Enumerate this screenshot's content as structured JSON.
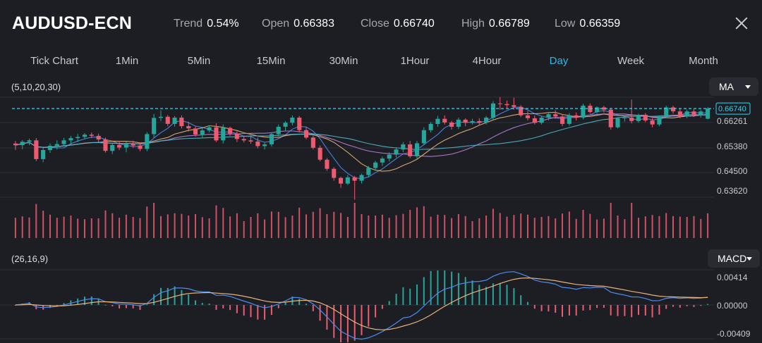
{
  "header": {
    "symbol": "AUDUSD-ECN",
    "stats": [
      {
        "label": "Trend",
        "value": "0.54%"
      },
      {
        "label": "Open",
        "value": "0.66383"
      },
      {
        "label": "Close",
        "value": "0.66740"
      },
      {
        "label": "High",
        "value": "0.66789"
      },
      {
        "label": "Low",
        "value": "0.66359"
      }
    ]
  },
  "tabs": [
    {
      "label": "Tick Chart",
      "active": false
    },
    {
      "label": "1Min",
      "active": false
    },
    {
      "label": "5Min",
      "active": false
    },
    {
      "label": "15Min",
      "active": false
    },
    {
      "label": "30Min",
      "active": false
    },
    {
      "label": "1Hour",
      "active": false
    },
    {
      "label": "4Hour",
      "active": false
    },
    {
      "label": "Day",
      "active": true
    },
    {
      "label": "Week",
      "active": false
    },
    {
      "label": "Month",
      "active": false
    }
  ],
  "main_panel": {
    "params": "(5,10,20,30)",
    "indicator": "MA",
    "y_ticks": [
      "0.66261",
      "0.65380",
      "0.64500",
      "0.63620"
    ],
    "current_price_label": "0.66740",
    "current_price": 0.6674
  },
  "macd_panel": {
    "params": "(26,16,9)",
    "indicator": "MACD",
    "y_ticks": [
      "0.00414",
      "0.00000",
      "-0.00409"
    ]
  },
  "colors": {
    "up": "#26a69a",
    "down": "#ef5a6f",
    "price_line": "#2fd4f2",
    "accent": "#2fb7e3",
    "ma5": "#4b8cf0",
    "ma10": "#e8b27a",
    "ma20": "#b57ed6",
    "ma30": "#4fb8c8"
  },
  "chart_data": {
    "type": "candlestick",
    "price_axis": {
      "min": 0.6362,
      "max": 0.6714
    },
    "candles": [
      [
        0.6551,
        0.656,
        0.6528,
        0.6545
      ],
      [
        0.6545,
        0.6563,
        0.6531,
        0.6557
      ],
      [
        0.6557,
        0.6568,
        0.6545,
        0.6562
      ],
      [
        0.6562,
        0.657,
        0.6489,
        0.6496
      ],
      [
        0.6496,
        0.6537,
        0.6485,
        0.6528
      ],
      [
        0.6528,
        0.6551,
        0.6518,
        0.6543
      ],
      [
        0.6543,
        0.6562,
        0.653,
        0.6549
      ],
      [
        0.6549,
        0.6571,
        0.654,
        0.6562
      ],
      [
        0.6562,
        0.6578,
        0.6548,
        0.657
      ],
      [
        0.657,
        0.6585,
        0.6556,
        0.6574
      ],
      [
        0.6574,
        0.6588,
        0.6566,
        0.6582
      ],
      [
        0.6582,
        0.659,
        0.657,
        0.6578
      ],
      [
        0.6578,
        0.6586,
        0.6556,
        0.6565
      ],
      [
        0.6565,
        0.6572,
        0.6519,
        0.6525
      ],
      [
        0.6525,
        0.6552,
        0.6514,
        0.6546
      ],
      [
        0.6546,
        0.656,
        0.6528,
        0.6537
      ],
      [
        0.6537,
        0.6558,
        0.652,
        0.6549
      ],
      [
        0.6549,
        0.6561,
        0.6536,
        0.6544
      ],
      [
        0.6544,
        0.6555,
        0.6524,
        0.6532
      ],
      [
        0.6532,
        0.6591,
        0.6524,
        0.6584
      ],
      [
        0.6584,
        0.6655,
        0.657,
        0.6641
      ],
      [
        0.6641,
        0.6668,
        0.663,
        0.6645
      ],
      [
        0.6645,
        0.6651,
        0.6612,
        0.662
      ],
      [
        0.662,
        0.6648,
        0.661,
        0.6642
      ],
      [
        0.6642,
        0.665,
        0.6604,
        0.6612
      ],
      [
        0.6612,
        0.6628,
        0.6593,
        0.6604
      ],
      [
        0.6604,
        0.661,
        0.6575,
        0.6583
      ],
      [
        0.6583,
        0.6604,
        0.657,
        0.6597
      ],
      [
        0.6597,
        0.6615,
        0.659,
        0.6608
      ],
      [
        0.6608,
        0.6622,
        0.6556,
        0.6562
      ],
      [
        0.6562,
        0.6618,
        0.6551,
        0.6606
      ],
      [
        0.6606,
        0.661,
        0.6578,
        0.6586
      ],
      [
        0.6586,
        0.6594,
        0.6556,
        0.6567
      ],
      [
        0.6567,
        0.6575,
        0.6555,
        0.6562
      ],
      [
        0.6562,
        0.658,
        0.655,
        0.6558
      ],
      [
        0.6558,
        0.6572,
        0.6534,
        0.6542
      ],
      [
        0.6542,
        0.6556,
        0.653,
        0.6548
      ],
      [
        0.6548,
        0.6589,
        0.654,
        0.6584
      ],
      [
        0.6584,
        0.6618,
        0.6575,
        0.661
      ],
      [
        0.661,
        0.663,
        0.6596,
        0.6624
      ],
      [
        0.6624,
        0.665,
        0.6615,
        0.6642
      ],
      [
        0.6642,
        0.6648,
        0.659,
        0.6598
      ],
      [
        0.6598,
        0.661,
        0.6566,
        0.6572
      ],
      [
        0.6572,
        0.6578,
        0.653,
        0.6536
      ],
      [
        0.6536,
        0.6544,
        0.6488,
        0.6494
      ],
      [
        0.6494,
        0.65,
        0.6455,
        0.6462
      ],
      [
        0.6462,
        0.6468,
        0.642,
        0.643
      ],
      [
        0.643,
        0.6434,
        0.6395,
        0.641
      ],
      [
        0.641,
        0.644,
        0.6405,
        0.6432
      ],
      [
        0.6432,
        0.6437,
        0.6353,
        0.642
      ],
      [
        0.642,
        0.6445,
        0.641,
        0.644
      ],
      [
        0.644,
        0.6472,
        0.6432,
        0.6465
      ],
      [
        0.6465,
        0.649,
        0.6455,
        0.6484
      ],
      [
        0.6484,
        0.6505,
        0.6472,
        0.6498
      ],
      [
        0.6498,
        0.652,
        0.6488,
        0.6512
      ],
      [
        0.6512,
        0.6538,
        0.6502,
        0.653
      ],
      [
        0.653,
        0.6556,
        0.652,
        0.6548
      ],
      [
        0.6548,
        0.656,
        0.65,
        0.6506
      ],
      [
        0.6506,
        0.656,
        0.6496,
        0.6552
      ],
      [
        0.6552,
        0.6608,
        0.6545,
        0.6598
      ],
      [
        0.6598,
        0.6626,
        0.659,
        0.662
      ],
      [
        0.662,
        0.6648,
        0.661,
        0.6638
      ],
      [
        0.6638,
        0.665,
        0.6618,
        0.6625
      ],
      [
        0.6625,
        0.6631,
        0.66,
        0.661
      ],
      [
        0.661,
        0.6642,
        0.6602,
        0.6635
      ],
      [
        0.6635,
        0.664,
        0.6612,
        0.6624
      ],
      [
        0.6624,
        0.6638,
        0.6618,
        0.663
      ],
      [
        0.663,
        0.664,
        0.6615,
        0.6624
      ],
      [
        0.6624,
        0.6648,
        0.6618,
        0.6642
      ],
      [
        0.6642,
        0.67,
        0.6636,
        0.6692
      ],
      [
        0.6692,
        0.6714,
        0.667,
        0.669
      ],
      [
        0.669,
        0.6702,
        0.6676,
        0.6686
      ],
      [
        0.6686,
        0.6712,
        0.667,
        0.668
      ],
      [
        0.668,
        0.6686,
        0.6644,
        0.665
      ],
      [
        0.665,
        0.6665,
        0.6632,
        0.664
      ],
      [
        0.664,
        0.665,
        0.6618,
        0.6624
      ],
      [
        0.6624,
        0.6648,
        0.6618,
        0.6642
      ],
      [
        0.6642,
        0.666,
        0.6632,
        0.6654
      ],
      [
        0.6654,
        0.6668,
        0.6638,
        0.6646
      ],
      [
        0.6646,
        0.6654,
        0.6612,
        0.662
      ],
      [
        0.662,
        0.6658,
        0.6614,
        0.665
      ],
      [
        0.665,
        0.666,
        0.6632,
        0.6642
      ],
      [
        0.6642,
        0.6691,
        0.6636,
        0.6684
      ],
      [
        0.6684,
        0.6692,
        0.6656,
        0.6662
      ],
      [
        0.6662,
        0.6682,
        0.6656,
        0.6678
      ],
      [
        0.6678,
        0.6684,
        0.666,
        0.667
      ],
      [
        0.667,
        0.6676,
        0.66,
        0.6608
      ],
      [
        0.6608,
        0.6644,
        0.6604,
        0.664
      ],
      [
        0.664,
        0.665,
        0.6628,
        0.6642
      ],
      [
        0.6642,
        0.6706,
        0.6622,
        0.663
      ],
      [
        0.663,
        0.6656,
        0.6624,
        0.6652
      ],
      [
        0.6652,
        0.6658,
        0.6626,
        0.6632
      ],
      [
        0.6632,
        0.664,
        0.6608,
        0.6618
      ],
      [
        0.6618,
        0.665,
        0.6612,
        0.6646
      ],
      [
        0.6646,
        0.6684,
        0.664,
        0.6678
      ],
      [
        0.6678,
        0.6684,
        0.6656,
        0.6664
      ],
      [
        0.6664,
        0.6676,
        0.664,
        0.6646
      ],
      [
        0.6646,
        0.667,
        0.664,
        0.6664
      ],
      [
        0.6664,
        0.6672,
        0.6644,
        0.665
      ],
      [
        0.665,
        0.667,
        0.6642,
        0.6664
      ],
      [
        0.6638,
        0.6679,
        0.6636,
        0.6674
      ]
    ]
  }
}
